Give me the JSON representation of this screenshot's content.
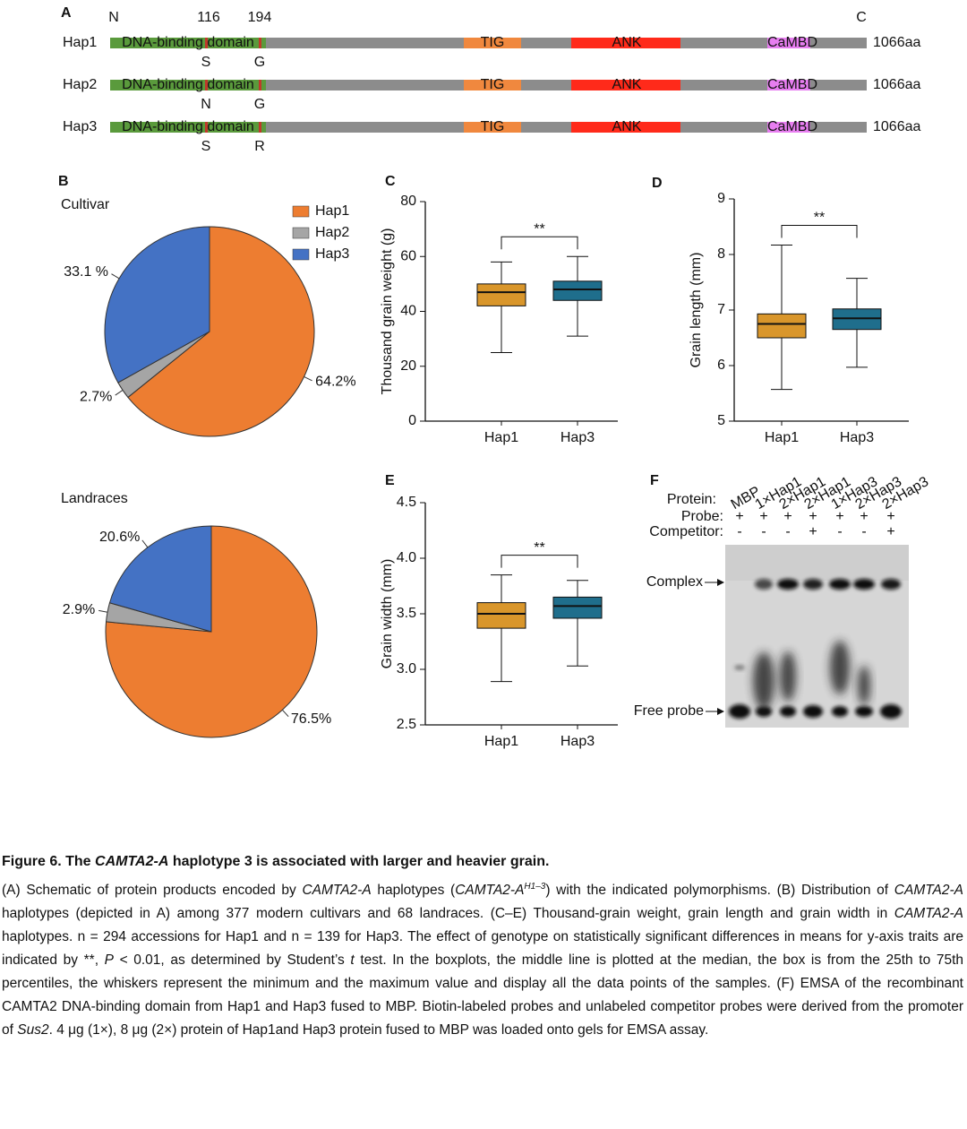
{
  "panel_labels": [
    "A",
    "B",
    "C",
    "D",
    "E",
    "F"
  ],
  "schematic": {
    "positions": [
      "N",
      "116",
      "194",
      "C"
    ],
    "domains": [
      "DNA-binding domain",
      "TIG",
      "ANK",
      "CaMBD"
    ],
    "rows": [
      {
        "name": "Hap1",
        "residues": [
          "S",
          "G"
        ],
        "length": "1066aa"
      },
      {
        "name": "Hap2",
        "residues": [
          "N",
          "G"
        ],
        "length": "1066aa"
      },
      {
        "name": "Hap3",
        "residues": [
          "S",
          "R"
        ],
        "length": "1066aa"
      }
    ]
  },
  "chart_data": [
    {
      "type": "pie",
      "title": "Cultivar",
      "categories": [
        "Hap1",
        "Hap2",
        "Hap3"
      ],
      "values": [
        64.2,
        2.7,
        33.1
      ],
      "value_labels": [
        "64.2%",
        "2.7%",
        "33.1 %"
      ],
      "colors": [
        "#ed7d31",
        "#a5a5a5",
        "#4472c4"
      ],
      "legend": true
    },
    {
      "type": "pie",
      "title": "Landraces",
      "categories": [
        "Hap1",
        "Hap2",
        "Hap3"
      ],
      "values": [
        76.5,
        2.9,
        20.6
      ],
      "value_labels": [
        "76.5%",
        "2.9%",
        "20.6%"
      ],
      "colors": [
        "#ed7d31",
        "#a5a5a5",
        "#4472c4"
      ],
      "legend": false
    },
    {
      "type": "box",
      "ylabel": "Thousand grain weight (g)",
      "categories": [
        "Hap1",
        "Hap3"
      ],
      "colors": [
        "#d9962b",
        "#1f6e8c"
      ],
      "boxes": [
        {
          "min": 25,
          "q1": 42,
          "median": 47,
          "q3": 50,
          "max": 58
        },
        {
          "min": 31,
          "q1": 44,
          "median": 48,
          "q3": 51,
          "max": 60
        }
      ],
      "ylim": [
        0,
        80
      ],
      "yticks": [
        0,
        20,
        40,
        60,
        80
      ],
      "significance": "**"
    },
    {
      "type": "box",
      "ylabel": "Grain length (mm)",
      "categories": [
        "Hap1",
        "Hap3"
      ],
      "colors": [
        "#d9962b",
        "#1f6e8c"
      ],
      "boxes": [
        {
          "min": 5.57,
          "q1": 6.5,
          "median": 6.75,
          "q3": 6.93,
          "max": 8.17
        },
        {
          "min": 5.97,
          "q1": 6.65,
          "median": 6.85,
          "q3": 7.02,
          "max": 7.57
        }
      ],
      "ylim": [
        5,
        9
      ],
      "yticks": [
        5,
        6,
        7,
        8,
        9
      ],
      "significance": "**"
    },
    {
      "type": "box",
      "ylabel": "Grain width (mm)",
      "categories": [
        "Hap1",
        "Hap3"
      ],
      "colors": [
        "#d9962b",
        "#1f6e8c"
      ],
      "boxes": [
        {
          "min": 2.89,
          "q1": 3.37,
          "median": 3.5,
          "q3": 3.6,
          "max": 3.85
        },
        {
          "min": 3.03,
          "q1": 3.46,
          "median": 3.57,
          "q3": 3.65,
          "max": 3.8
        }
      ],
      "ylim": [
        2.5,
        4.5
      ],
      "yticks": [
        2.5,
        {
          "value": 3,
          "label": "3.0"
        },
        3.5,
        {
          "value": 4,
          "label": "4.0"
        },
        4.5
      ],
      "significance": "**"
    }
  ],
  "gel": {
    "row_labels": [
      "Protein:",
      "Probe:",
      "Competitor:"
    ],
    "lanes": [
      {
        "protein": "MBP",
        "probe": "+",
        "competitor": "-"
      },
      {
        "protein": "1×Hap1",
        "probe": "+",
        "competitor": "-"
      },
      {
        "protein": "2×Hap1",
        "probe": "+",
        "competitor": "-"
      },
      {
        "protein": "2×Hap1",
        "probe": "+",
        "competitor": "+"
      },
      {
        "protein": "1×Hap3",
        "probe": "+",
        "competitor": "-"
      },
      {
        "protein": "2×Hap3",
        "probe": "+",
        "competitor": "-"
      },
      {
        "protein": "2×Hap3",
        "probe": "+",
        "competitor": "+"
      }
    ],
    "bands": [
      "Complex",
      "Free probe"
    ]
  },
  "caption": {
    "title": [
      {
        "text": "Figure 6. The "
      },
      {
        "text": "CAMTA2-A",
        "italic": true
      },
      {
        "text": " haplotype 3 is associated with larger and heavier grain."
      }
    ],
    "body": [
      {
        "text": "(A) Schematic of protein products encoded by "
      },
      {
        "text": "CAMTA2-A",
        "italic": true
      },
      {
        "text": " haplotypes ("
      },
      {
        "text": "CAMTA2-A",
        "italic": true
      },
      {
        "text": "H1–3",
        "italic": true,
        "sup": true
      },
      {
        "text": ") with the indicated polymorphisms. (B) Distribution of "
      },
      {
        "text": "CAMTA2-A",
        "italic": true
      },
      {
        "text": " haplotypes (depicted in A) among 377 modern cultivars and 68 landraces. (C–E) Thousand-grain weight, grain length and grain width in "
      },
      {
        "text": "CAMTA2-A",
        "italic": true
      },
      {
        "text": " haplotypes. n = 294 accessions for Hap1 and n = 139 for Hap3. The effect of genotype on statistically significant differences in means for y-axis traits are indicated by **, "
      },
      {
        "text": "P",
        "italic": true
      },
      {
        "text": " < 0.01, as determined by Student’s "
      },
      {
        "text": "t",
        "italic": true
      },
      {
        "text": " test. In the boxplots, the middle line is plotted at the median, the box is from the 25th to 75th percentiles, the whiskers represent the minimum and the maximum value and display all the data points of the samples. (F) EMSA of the recombinant CAMTA2 DNA-binding domain from Hap1 and Hap3 fused to MBP. Biotin-labeled probes and unlabeled competitor probes were derived from the promoter of "
      },
      {
        "text": "Sus2",
        "italic": true
      },
      {
        "text": ". 4 μg (1×), 8 μg (2×) protein of Hap1and Hap3 protein fused to MBP was loaded onto gels for EMSA assay."
      }
    ]
  }
}
